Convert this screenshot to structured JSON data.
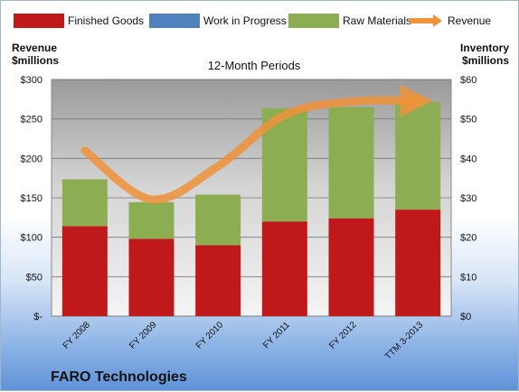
{
  "chart_data": {
    "type": "bar",
    "stacked": true,
    "title": "12-Month Periods",
    "company": "FARO Technologies",
    "left_axis_title": [
      "Revenue",
      "$millions"
    ],
    "right_axis_title": [
      "Inventory",
      "$millions"
    ],
    "categories": [
      "FY 2008",
      "FY 2009",
      "FY 2010",
      "FY 2011",
      "FY 2012",
      "TTM 3-2013"
    ],
    "series": [
      {
        "name": "Finished Goods",
        "axis": "right",
        "color": "#c0191b",
        "values": [
          22.8,
          19.6,
          18.0,
          24.0,
          24.8,
          27.0
        ]
      },
      {
        "name": "Work in Progress",
        "axis": "right",
        "color": "#4f81bd",
        "values": [
          0,
          0,
          0,
          0,
          0,
          0
        ]
      },
      {
        "name": "Raw Materials",
        "axis": "right",
        "color": "#8cad52",
        "values": [
          11.9,
          9.3,
          12.8,
          28.7,
          28.2,
          27.3
        ]
      }
    ],
    "line_series": {
      "name": "Revenue",
      "axis": "left",
      "color": "#f0923a",
      "values": [
        210,
        148,
        190,
        255,
        272,
        273
      ]
    },
    "left_axis": {
      "ylim": [
        0,
        300
      ],
      "ticks": [
        "$-",
        "$50",
        "$100",
        "$150",
        "$200",
        "$250",
        "$300"
      ]
    },
    "right_axis": {
      "ylim": [
        0,
        60
      ],
      "ticks": [
        "$0",
        "$10",
        "$20",
        "$30",
        "$40",
        "$50",
        "$60"
      ]
    },
    "grid": true,
    "legend_position": "top"
  }
}
